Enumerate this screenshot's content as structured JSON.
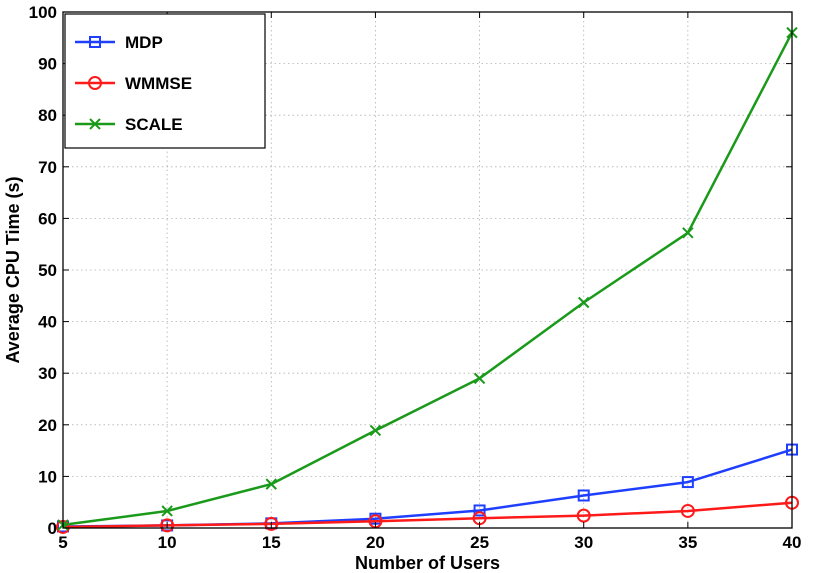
{
  "chart_data": {
    "type": "line",
    "title": "",
    "xlabel": "Number of Users",
    "ylabel": "Average CPU Time (s)",
    "xlim": [
      5,
      40
    ],
    "ylim": [
      0,
      100
    ],
    "xticks": [
      5,
      10,
      15,
      20,
      25,
      30,
      35,
      40
    ],
    "yticks": [
      0,
      10,
      20,
      30,
      40,
      50,
      60,
      70,
      80,
      90,
      100
    ],
    "grid": true,
    "legend_position": "top-left",
    "x": [
      5,
      10,
      15,
      20,
      25,
      30,
      35,
      40
    ],
    "series": [
      {
        "name": "MDP",
        "color": "#1f3fff",
        "marker": "square",
        "values": [
          0.3,
          0.5,
          0.9,
          1.8,
          3.4,
          6.3,
          8.9,
          15.2
        ]
      },
      {
        "name": "WMMSE",
        "color": "#ff1a1a",
        "marker": "circle",
        "values": [
          0.2,
          0.5,
          0.8,
          1.3,
          1.9,
          2.4,
          3.3,
          4.9
        ]
      },
      {
        "name": "SCALE",
        "color": "#1a9a1a",
        "marker": "x",
        "values": [
          0.6,
          3.3,
          8.5,
          18.9,
          29.0,
          43.7,
          57.2,
          96.0
        ]
      }
    ]
  }
}
